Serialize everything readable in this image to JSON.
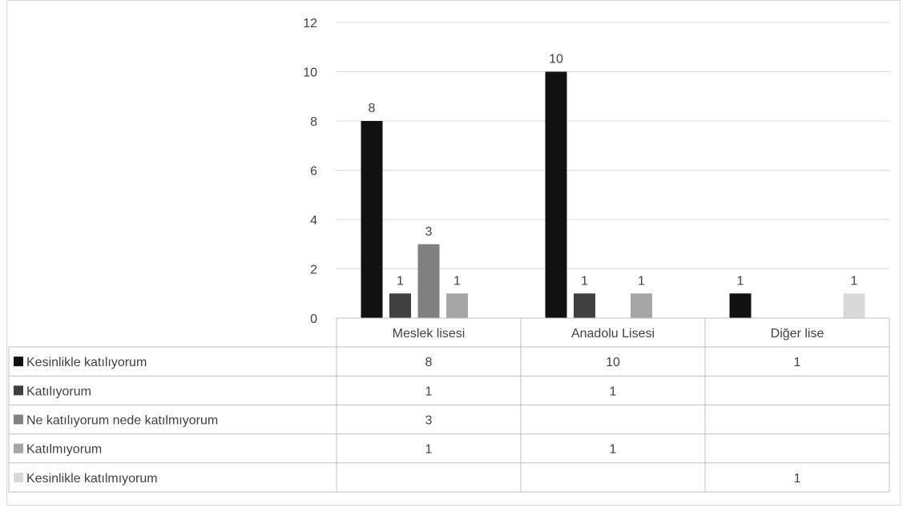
{
  "chart_data": {
    "type": "bar",
    "categories": [
      "Meslek lisesi",
      "Anadolu Lisesi",
      "Diğer lise"
    ],
    "series": [
      {
        "name": "Kesinlikle katılıyorum",
        "color": "#111111",
        "values": [
          8,
          10,
          1
        ]
      },
      {
        "name": "Katılıyorum",
        "color": "#404040",
        "values": [
          1,
          1,
          null
        ]
      },
      {
        "name": "Ne katılıyorum nede katılmıyorum",
        "color": "#808080",
        "values": [
          3,
          null,
          null
        ]
      },
      {
        "name": "Katılmıyorum",
        "color": "#a6a6a6",
        "values": [
          1,
          1,
          null
        ]
      },
      {
        "name": "Kesinlikle katılmıyorum",
        "color": "#d9d9d9",
        "values": [
          null,
          null,
          1
        ]
      }
    ],
    "yticks": [
      "0",
      "2",
      "4",
      "6",
      "8",
      "10",
      "12"
    ],
    "ylim": [
      0,
      12
    ],
    "grid": true,
    "legend": "data table",
    "title": "",
    "xlabel": "",
    "ylabel": ""
  }
}
